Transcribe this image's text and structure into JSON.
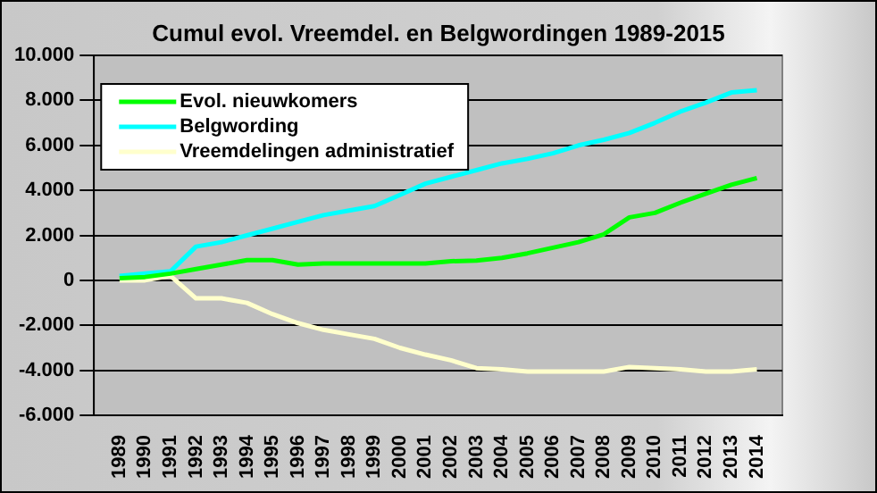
{
  "chart_data": {
    "type": "line",
    "title": "Cumul evol. Vreemdel. en Belgwordingen 1989-2015",
    "categories": [
      null,
      "1989",
      "1990",
      "1991",
      "1992",
      "1993",
      "1994",
      "1995",
      "1996",
      "1997",
      "1998",
      "1999",
      "2000",
      "2001",
      "2002",
      "2003",
      "2004",
      "2005",
      "2006",
      "2007",
      "2008",
      "2009",
      "2010",
      "2011",
      "2012",
      "2013",
      "2014",
      null
    ],
    "series": [
      {
        "name": "Evol. nieuwkomers",
        "color": "#00ff00",
        "values": [
          null,
          100,
          150,
          300,
          500,
          700,
          900,
          900,
          700,
          750,
          750,
          750,
          750,
          750,
          850,
          880,
          1000,
          1200,
          1450,
          1700,
          2050,
          2800,
          3000,
          3450,
          3850,
          4250,
          4550,
          null
        ]
      },
      {
        "name": "Belgwording",
        "color": "#00ffff",
        "values": [
          null,
          200,
          300,
          400,
          1500,
          1700,
          2000,
          2300,
          2600,
          2900,
          3100,
          3300,
          3800,
          4300,
          4600,
          4900,
          5200,
          5400,
          5650,
          6000,
          6250,
          6550,
          7000,
          7500,
          7900,
          8350,
          8450,
          null
        ]
      },
      {
        "name": "Vreemdelingen administratief",
        "color": "#ffffcc",
        "values": [
          null,
          0,
          0,
          200,
          -800,
          -800,
          -1000,
          -1500,
          -1900,
          -2200,
          -2400,
          -2600,
          -3000,
          -3300,
          -3550,
          -3900,
          -3950,
          -4050,
          -4050,
          -4050,
          -4050,
          -3850,
          -3900,
          -3950,
          -4050,
          -4050,
          -3950,
          null
        ]
      }
    ],
    "ylim": [
      -6000,
      10000
    ],
    "yticks": [
      {
        "value": -6000,
        "label": "-6.000"
      },
      {
        "value": -4000,
        "label": "-4.000"
      },
      {
        "value": -2000,
        "label": "-2.000"
      },
      0,
      {
        "value": 2000,
        "label": "2.000"
      },
      {
        "value": 4000,
        "label": "4.000"
      },
      {
        "value": 6000,
        "label": "6.000"
      },
      {
        "value": 8000,
        "label": "8.000"
      },
      {
        "value": 10000,
        "label": "10.000"
      }
    ],
    "grid": "y",
    "legend": "top left",
    "marker": "none",
    "line_style": "solid"
  }
}
